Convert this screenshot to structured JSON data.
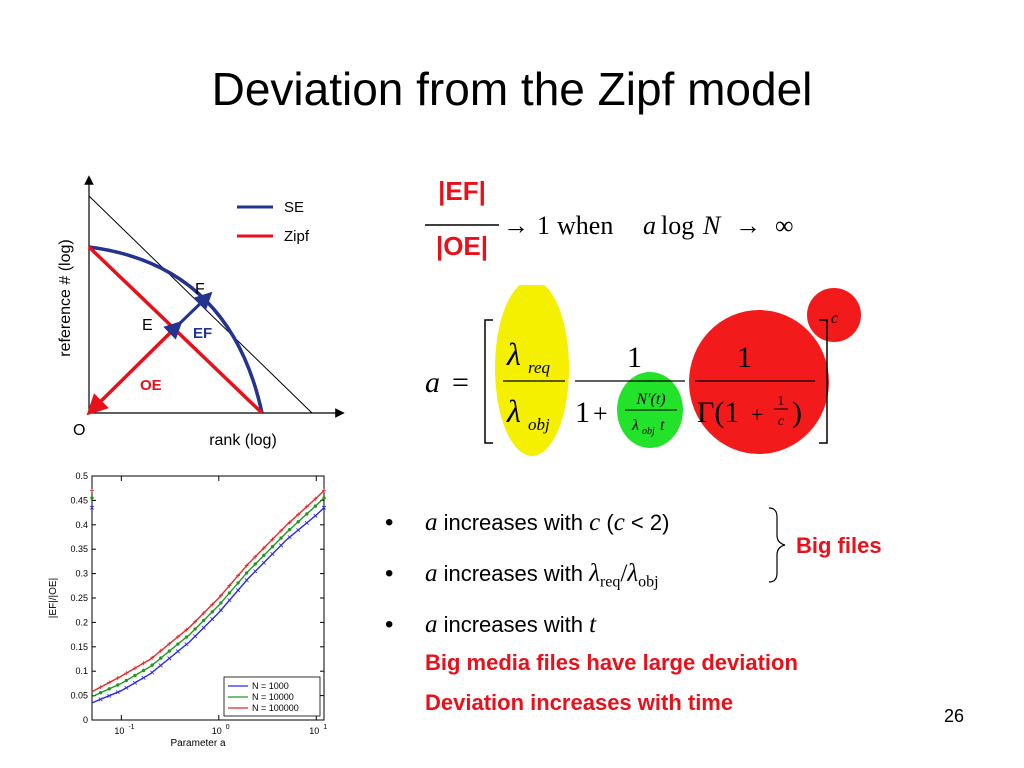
{
  "slide": {
    "title": "Deviation from the Zipf model",
    "page_number": "26"
  },
  "diagram": {
    "ylabel": "reference # (log)",
    "xlabel": "rank (log)",
    "origin_label": "O",
    "point_e": "E",
    "point_f": "F",
    "ef_label": "EF",
    "oe_label": "OE",
    "legend": [
      {
        "label": "SE",
        "color": "#23338e"
      },
      {
        "label": "Zipf",
        "color": "#e8101a"
      }
    ]
  },
  "formula1": {
    "numerator": "|EF|",
    "denominator": "|OE|",
    "arrow": "→",
    "one": "1",
    "when": "when",
    "a": "a",
    "log": "log",
    "N": "N",
    "infinity": "∞"
  },
  "formula2": {
    "lhs": "a",
    "equals": "=",
    "lambda": "λ",
    "req": "req",
    "obj": "obj",
    "one": "1",
    "plus": "+",
    "Nt": "N′(t)",
    "t": "t",
    "gamma": "Γ(1",
    "close_paren": ")",
    "c": "c",
    "exp_c": "c"
  },
  "bullets": [
    {
      "var": "a",
      "text": " increases with ",
      "tail_var": "c",
      "tail": " (",
      "tail_var2": "c",
      "tail2": " < 2)"
    },
    {
      "var": "a",
      "text": " increases with ",
      "lambda1": "λ",
      "sub1": "req",
      "slash": "/",
      "lambda2": "λ",
      "sub2": "obj"
    },
    {
      "var": "a",
      "text": " increases with ",
      "tail_var": "t"
    }
  ],
  "brace_label": "Big files",
  "notes": [
    "Big media files have large deviation",
    "Deviation increases with time"
  ],
  "chart_data": {
    "type": "line",
    "xlabel": "Parameter a",
    "ylabel": "|EF|/|OE|",
    "xscale": "log",
    "xlim": [
      0.05,
      12
    ],
    "ylim": [
      0,
      0.5
    ],
    "x_ticks": [
      "10",
      "10",
      "10"
    ],
    "x_tick_exponents": [
      "-1",
      "0",
      "1"
    ],
    "y_ticks": [
      "0",
      "0.05",
      "0.1",
      "0.15",
      "0.2",
      "0.25",
      "0.3",
      "0.35",
      "0.4",
      "0.45",
      "0.5"
    ],
    "legend_position": "bottom-right",
    "grid": false,
    "series": [
      {
        "name": "N = 1000",
        "color": "#2a2ae8",
        "marker": "x",
        "x": [
          0.05,
          0.1,
          0.2,
          0.5,
          1,
          2,
          5,
          10,
          12
        ],
        "y": [
          0.035,
          0.06,
          0.095,
          0.16,
          0.22,
          0.29,
          0.37,
          0.42,
          0.435
        ]
      },
      {
        "name": "N = 10000",
        "color": "#1f9a1f",
        "marker": "*",
        "x": [
          0.05,
          0.1,
          0.2,
          0.5,
          1,
          2,
          5,
          10,
          12
        ],
        "y": [
          0.048,
          0.075,
          0.11,
          0.175,
          0.235,
          0.305,
          0.385,
          0.44,
          0.455
        ]
      },
      {
        "name": "N = 100000",
        "color": "#e82a2a",
        "marker": "+",
        "x": [
          0.05,
          0.1,
          0.2,
          0.5,
          1,
          2,
          5,
          10,
          12
        ],
        "y": [
          0.058,
          0.09,
          0.125,
          0.19,
          0.25,
          0.32,
          0.4,
          0.455,
          0.47
        ]
      }
    ]
  }
}
